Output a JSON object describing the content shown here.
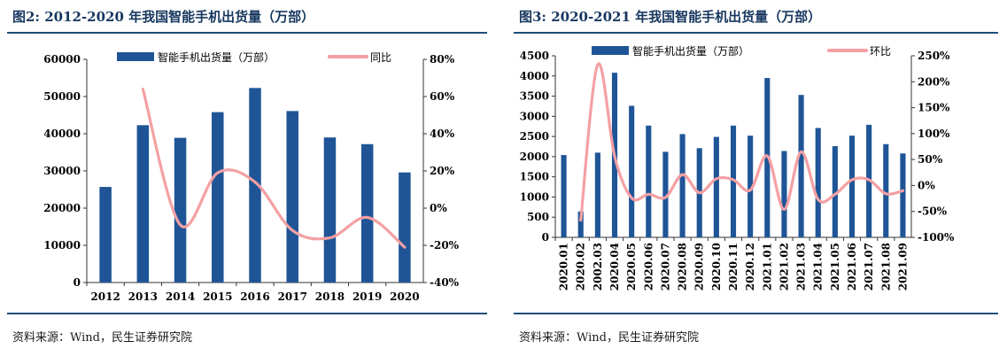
{
  "charts": {
    "left": {
      "title": "图2: 2012-2020 年我国智能手机出货量（万部）",
      "source": "资料来源：Wind，民生证券研究院"
    },
    "right": {
      "title": "图3: 2020-2021 年我国智能手机出货量（万部）",
      "source": "资料来源：Wind，民生证券研究院"
    }
  },
  "chart_data": [
    {
      "type": "bar",
      "title": "图2: 2012-2020 年我国智能手机出货量（万部）",
      "categories": [
        "2012",
        "2013",
        "2014",
        "2015",
        "2016",
        "2017",
        "2018",
        "2019",
        "2020"
      ],
      "series": [
        {
          "name": "智能手机出货量（万部）",
          "type": "bar",
          "axis": "left",
          "color": "#1f5597",
          "values": [
            25700,
            42300,
            38900,
            45800,
            52300,
            46100,
            39000,
            37200,
            29600
          ]
        },
        {
          "name": "同比",
          "type": "line",
          "axis": "right",
          "color": "#f4a0a3",
          "values": [
            null,
            0.64,
            -0.09,
            0.19,
            0.14,
            -0.12,
            -0.16,
            -0.05,
            -0.21
          ]
        }
      ],
      "y_left": {
        "ticks": [
          "0",
          "10000",
          "20000",
          "30000",
          "40000",
          "50000",
          "60000"
        ],
        "lim": [
          0,
          60000
        ]
      },
      "y_right": {
        "ticks": [
          "-40%",
          "-20%",
          "0%",
          "20%",
          "40%",
          "60%",
          "80%"
        ],
        "lim": [
          -0.4,
          0.8
        ]
      },
      "legend": "top-center",
      "grid": false
    },
    {
      "type": "bar",
      "title": "图3: 2020-2021 年我国智能手机出货量（万部）",
      "categories": [
        "2020.01",
        "2020.02",
        "2002.03",
        "2020.04",
        "2020.05",
        "2020.06",
        "2020.07",
        "2020.08",
        "2020.09",
        "2020.10",
        "2020.11",
        "2020.12",
        "2021.01",
        "2021.02",
        "2021.03",
        "2021.04",
        "2021.05",
        "2021.06",
        "2021.07",
        "2021.08",
        "2021.09"
      ],
      "series": [
        {
          "name": "智能手机出货量（万部）",
          "type": "bar",
          "axis": "left",
          "color": "#1f5597",
          "values": [
            2040,
            640,
            2100,
            4080,
            3260,
            2770,
            2120,
            2560,
            2210,
            2490,
            2770,
            2520,
            3950,
            2140,
            3530,
            2710,
            2260,
            2520,
            2790,
            2310,
            2080
          ]
        },
        {
          "name": "环比",
          "type": "line",
          "axis": "right",
          "color": "#f4a0a3",
          "values": [
            null,
            -0.67,
            2.33,
            0.56,
            -0.24,
            -0.17,
            -0.23,
            0.21,
            -0.14,
            0.13,
            0.11,
            -0.09,
            0.57,
            -0.46,
            0.65,
            -0.27,
            -0.17,
            0.11,
            0.11,
            -0.16,
            -0.1
          ]
        }
      ],
      "y_left": {
        "ticks": [
          "0",
          "500",
          "1000",
          "1500",
          "2000",
          "2500",
          "3000",
          "3500",
          "4000",
          "4500"
        ],
        "lim": [
          0,
          4500
        ]
      },
      "y_right": {
        "ticks": [
          "-100%",
          "-50%",
          "0%",
          "50%",
          "100%",
          "150%",
          "200%",
          "250%"
        ],
        "lim": [
          -1.0,
          2.5
        ]
      },
      "legend": "top-center",
      "grid": false
    }
  ]
}
